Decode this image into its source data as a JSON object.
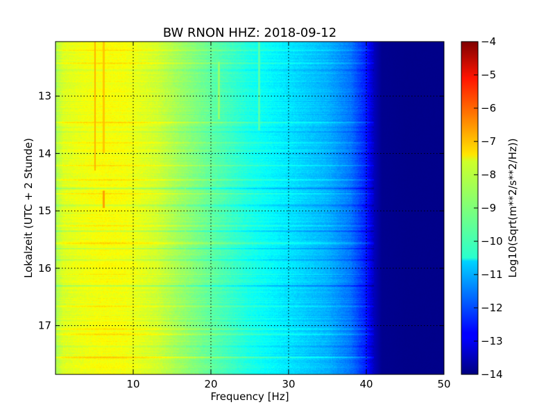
{
  "chart_data": {
    "type": "heatmap",
    "title": "BW RNON HHZ: 2018-09-12",
    "xlabel": "Frequency [Hz]",
    "ylabel": "Lokalzeit (UTC + 2 Stunde)",
    "xlim": [
      0,
      50
    ],
    "ylim": [
      12.05,
      17.85
    ],
    "y_inverted": true,
    "grid": true,
    "x_ticks": [
      10,
      20,
      30,
      40,
      50
    ],
    "x_tick_labels": [
      "10",
      "20",
      "30",
      "40",
      "50"
    ],
    "y_ticks": [
      13,
      14,
      15,
      16,
      17
    ],
    "y_tick_labels": [
      "13",
      "14",
      "15",
      "16",
      "17"
    ],
    "colormap": "jet",
    "colorbar": {
      "label": "Log10(Sqrt(m**2/s**2/Hz))",
      "range": [
        -14,
        -4
      ],
      "ticks": [
        -4,
        -5,
        -6,
        -7,
        -8,
        -9,
        -10,
        -11,
        -12,
        -13,
        -14
      ],
      "tick_labels": [
        "−4",
        "−5",
        "−6",
        "−7",
        "−8",
        "−9",
        "−10",
        "−11",
        "−12",
        "−13",
        "−14"
      ]
    },
    "frequency_profile": {
      "frequency_hz": [
        0,
        1,
        3,
        6,
        9,
        13,
        16,
        20,
        25,
        30,
        35,
        38,
        40,
        41,
        42,
        45,
        50
      ],
      "log10_amplitude": [
        -8.6,
        -8.1,
        -7.95,
        -7.8,
        -7.85,
        -8.2,
        -8.7,
        -9.3,
        -10.0,
        -10.5,
        -11.0,
        -11.6,
        -12.5,
        -13.4,
        -13.85,
        -13.9,
        -13.9
      ]
    },
    "spectral_lines": [
      {
        "frequency_hz": 5.1,
        "time_start": 12.05,
        "time_end": 14.3,
        "log10_amplitude": -7.0
      },
      {
        "frequency_hz": 6.2,
        "time_start": 12.05,
        "time_end": 14.0,
        "log10_amplitude": -7.2
      },
      {
        "frequency_hz": 6.2,
        "time_start": 14.65,
        "time_end": 14.95,
        "log10_amplitude": -6.8
      },
      {
        "frequency_hz": 16.7,
        "time_start": 12.05,
        "time_end": 17.85,
        "log10_amplitude": -8.9
      },
      {
        "frequency_hz": 21.0,
        "time_start": 12.4,
        "time_end": 13.4,
        "log10_amplitude": -8.8
      },
      {
        "frequency_hz": 26.2,
        "time_start": 12.05,
        "time_end": 13.6,
        "log10_amplitude": -9.4
      }
    ],
    "time_bands": [
      {
        "time": 12.2,
        "log10_amplitude_offset": 0.4,
        "max_frequency_hz": 28
      },
      {
        "time": 12.42,
        "log10_amplitude_offset": 0.5,
        "max_frequency_hz": 40
      },
      {
        "time": 12.55,
        "log10_amplitude_offset": -0.4,
        "max_frequency_hz": 40
      },
      {
        "time": 13.45,
        "log10_amplitude_offset": 0.5,
        "max_frequency_hz": 40
      },
      {
        "time": 13.62,
        "log10_amplitude_offset": -0.4,
        "max_frequency_hz": 40
      },
      {
        "time": 13.8,
        "log10_amplitude_offset": 0.3,
        "max_frequency_hz": 40
      },
      {
        "time": 13.95,
        "log10_amplitude_offset": 0.3,
        "max_frequency_hz": 40
      },
      {
        "time": 14.2,
        "log10_amplitude_offset": 0.4,
        "max_frequency_hz": 42
      },
      {
        "time": 14.45,
        "log10_amplitude_offset": 0.4,
        "max_frequency_hz": 40
      },
      {
        "time": 14.6,
        "log10_amplitude_offset": -0.6,
        "max_frequency_hz": 40
      },
      {
        "time": 14.7,
        "log10_amplitude_offset": 0.5,
        "max_frequency_hz": 40
      },
      {
        "time": 14.9,
        "log10_amplitude_offset": -0.5,
        "max_frequency_hz": 40
      },
      {
        "time": 15.25,
        "log10_amplitude_offset": 0.4,
        "max_frequency_hz": 40
      },
      {
        "time": 15.35,
        "log10_amplitude_offset": -0.4,
        "max_frequency_hz": 40
      },
      {
        "time": 15.55,
        "log10_amplitude_offset": 0.6,
        "max_frequency_hz": 41
      },
      {
        "time": 15.65,
        "log10_amplitude_offset": -0.5,
        "max_frequency_hz": 40
      },
      {
        "time": 15.85,
        "log10_amplitude_offset": -0.3,
        "max_frequency_hz": 40
      },
      {
        "time": 16.1,
        "log10_amplitude_offset": 0.3,
        "max_frequency_hz": 42
      },
      {
        "time": 16.3,
        "log10_amplitude_offset": -0.6,
        "max_frequency_hz": 40
      },
      {
        "time": 16.65,
        "log10_amplitude_offset": 0.3,
        "max_frequency_hz": 40
      },
      {
        "time": 17.05,
        "log10_amplitude_offset": 0.4,
        "max_frequency_hz": 40
      },
      {
        "time": 17.15,
        "log10_amplitude_offset": 0.5,
        "max_frequency_hz": 40
      },
      {
        "time": 17.35,
        "log10_amplitude_offset": -0.5,
        "max_frequency_hz": 40
      },
      {
        "time": 17.55,
        "log10_amplitude_offset": 0.7,
        "max_frequency_hz": 43
      }
    ]
  }
}
